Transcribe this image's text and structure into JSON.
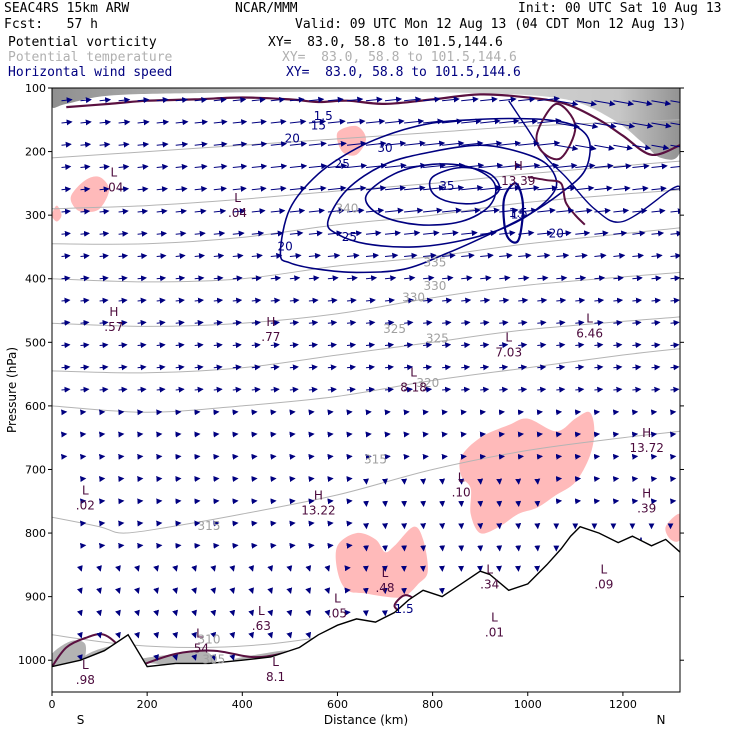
{
  "header": {
    "model": "SEAC4RS 15km ARW",
    "org": "NCAR/MMM",
    "init": "Init: 00 UTC Sat 10 Aug 13",
    "fcst": "Fcst:   57 h",
    "valid": "Valid: 09 UTC Mon 12 Aug 13 (04 CDT Mon 12 Aug 13)"
  },
  "legend": [
    {
      "label": "Potential vorticity",
      "xy": "XY=  83.0, 58.8 to 101.5,144.6",
      "color": "#000000"
    },
    {
      "label": "Potential temperature",
      "xy": "XY=  83.0, 58.8 to 101.5,144.6",
      "color": "#b0b0b0"
    },
    {
      "label": "Horizontal wind speed",
      "xy": "XY=  83.0, 58.8 to 101.5,144.6",
      "color": "#000080"
    }
  ],
  "chart_data": {
    "type": "cross-section",
    "xlabel": "Distance (km)",
    "ylabel": "Pressure (hPa)",
    "xlim": [
      0,
      1320
    ],
    "ylim": [
      1050,
      100
    ],
    "x_ticks": [
      0,
      200,
      400,
      600,
      800,
      1000,
      1200
    ],
    "y_ticks": [
      100,
      200,
      300,
      400,
      500,
      600,
      700,
      800,
      900,
      1000
    ],
    "end_labels": {
      "left": "S",
      "right": "N"
    },
    "colors": {
      "wind": "#000080",
      "theta": "#b4b4b4",
      "pv": "#5a1040",
      "pv_fill": "#ffb6b6",
      "terrain": "#000000",
      "hl_label": "#4b0a3c"
    },
    "wind_speed_contours": {
      "levels": [
        15,
        20,
        25,
        30,
        35
      ],
      "labels": [
        {
          "text": "15",
          "x": 560,
          "p": 160
        },
        {
          "text": "20",
          "x": 505,
          "p": 180
        },
        {
          "text": "25",
          "x": 610,
          "p": 220
        },
        {
          "text": "30",
          "x": 700,
          "p": 195
        },
        {
          "text": "35",
          "x": 830,
          "p": 255
        },
        {
          "text": "20",
          "x": 490,
          "p": 350
        },
        {
          "text": "25",
          "x": 625,
          "p": 335
        },
        {
          "text": "15",
          "x": 980,
          "p": 300
        },
        {
          "text": "20",
          "x": 1060,
          "p": 330
        }
      ]
    },
    "theta_contours": {
      "labels": [
        {
          "text": "340",
          "x": 620,
          "p": 290
        },
        {
          "text": "335",
          "x": 805,
          "p": 375
        },
        {
          "text": "330",
          "x": 760,
          "p": 430
        },
        {
          "text": "330",
          "x": 805,
          "p": 412
        },
        {
          "text": "325",
          "x": 810,
          "p": 495
        },
        {
          "text": "325",
          "x": 720,
          "p": 480
        },
        {
          "text": "320",
          "x": 790,
          "p": 565
        },
        {
          "text": "315",
          "x": 680,
          "p": 685
        },
        {
          "text": "315",
          "x": 330,
          "p": 790
        },
        {
          "text": "310",
          "x": 330,
          "p": 968
        },
        {
          "text": "305",
          "x": 340,
          "p": 1000
        }
      ]
    },
    "pv_labels": [
      {
        "text": "1.5",
        "x": 570,
        "p": 145
      },
      {
        "text": "1.5",
        "x": 980,
        "p": 297
      },
      {
        "text": "1.5",
        "x": 740,
        "p": 920
      }
    ],
    "extrema": [
      {
        "kind": "L",
        "value": ".04",
        "x": 130,
        "p": 250
      },
      {
        "kind": "L",
        "value": ".04",
        "x": 390,
        "p": 290
      },
      {
        "kind": "H",
        "value": ".57",
        "x": 130,
        "p": 470
      },
      {
        "kind": "H",
        "value": ".77",
        "x": 460,
        "p": 485
      },
      {
        "kind": "L",
        "value": "8.18",
        "x": 760,
        "p": 565
      },
      {
        "kind": "L",
        "value": "7.03",
        "x": 960,
        "p": 510
      },
      {
        "kind": "L",
        "value": "6.46",
        "x": 1130,
        "p": 480
      },
      {
        "kind": "H",
        "value": "13.72",
        "x": 1250,
        "p": 660
      },
      {
        "kind": "H",
        "value": "13.22",
        "x": 560,
        "p": 758
      },
      {
        "kind": "L",
        "value": ".02",
        "x": 70,
        "p": 750
      },
      {
        "kind": "L",
        "value": ".10",
        "x": 860,
        "p": 730
      },
      {
        "kind": "H",
        "value": ".39",
        "x": 1250,
        "p": 755
      },
      {
        "kind": "L",
        "value": ".34",
        "x": 920,
        "p": 875
      },
      {
        "kind": "L",
        "value": ".09",
        "x": 1160,
        "p": 875
      },
      {
        "kind": "L",
        "value": ".48",
        "x": 700,
        "p": 880
      },
      {
        "kind": "L",
        "value": ".05",
        "x": 600,
        "p": 920
      },
      {
        "kind": "L",
        "value": ".63",
        "x": 440,
        "p": 940
      },
      {
        "kind": "L",
        "value": ".54",
        "x": 310,
        "p": 975
      },
      {
        "kind": "L",
        "value": ".98",
        "x": 70,
        "p": 1025
      },
      {
        "kind": "L",
        "value": "8.1",
        "x": 470,
        "p": 1020
      },
      {
        "kind": "L",
        "value": ".01",
        "x": 930,
        "p": 950
      },
      {
        "kind": "H",
        "value": "13.39",
        "x": 980,
        "p": 240
      }
    ]
  }
}
